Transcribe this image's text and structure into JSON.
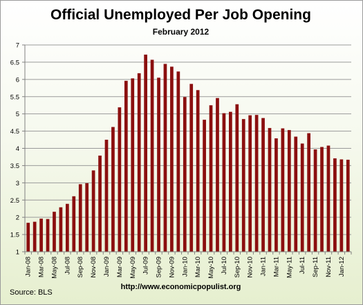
{
  "chart_data": {
    "type": "bar",
    "title": "Official Unemployed Per Job Opening",
    "subtitle": "February 2012",
    "source": "Source:  BLS",
    "url": "http://www.economicpopulist.org",
    "xlabel": "",
    "ylabel": "",
    "ylim": [
      1,
      7
    ],
    "yticks": [
      1,
      1.5,
      2,
      2.5,
      3,
      3.5,
      4,
      4.5,
      5,
      5.5,
      6,
      6.5,
      7
    ],
    "grid": true,
    "legend": "none",
    "bar_color": "#8b0f0f",
    "categories": [
      "Jan-08",
      "Feb-08",
      "Mar-08",
      "Apr-08",
      "May-08",
      "Jun-08",
      "Jul-08",
      "Aug-08",
      "Sep-08",
      "Oct-08",
      "Nov-08",
      "Dec-08",
      "Jan-09",
      "Feb-09",
      "Mar-09",
      "Apr-09",
      "May-09",
      "Jun-09",
      "Jul-09",
      "Aug-09",
      "Sep-09",
      "Oct-09",
      "Nov-09",
      "Dec-09",
      "Jan-10",
      "Feb-10",
      "Mar-10",
      "Apr-10",
      "May-10",
      "Jun-10",
      "Jul-10",
      "Aug-10",
      "Sep-10",
      "Oct-10",
      "Nov-10",
      "Dec-10",
      "Jan-11",
      "Feb-11",
      "Mar-11",
      "Apr-11",
      "May-11",
      "Jun-11",
      "Jul-11",
      "Aug-11",
      "Sep-11",
      "Oct-11",
      "Nov-11",
      "Dec-11",
      "Jan-12",
      "Feb-12"
    ],
    "values": [
      1.84,
      1.87,
      1.96,
      1.95,
      2.16,
      2.29,
      2.39,
      2.61,
      2.96,
      2.99,
      3.36,
      3.79,
      4.25,
      4.62,
      5.19,
      5.96,
      6.03,
      6.18,
      6.72,
      6.57,
      6.05,
      6.45,
      6.37,
      6.23,
      5.49,
      5.87,
      5.69,
      4.83,
      5.25,
      5.46,
      5.02,
      5.06,
      5.28,
      4.85,
      4.96,
      4.97,
      4.88,
      4.59,
      4.29,
      4.58,
      4.53,
      4.34,
      4.14,
      4.44,
      3.97,
      4.04,
      4.08,
      3.71,
      3.68,
      3.67
    ],
    "xtick_labels": [
      "Jan-08",
      "Mar-08",
      "May-08",
      "Jul-08",
      "Sep-08",
      "Nov-08",
      "Jan-09",
      "Mar-09",
      "May-09",
      "Jul-09",
      "Sep-09",
      "Nov-09",
      "Jan-10",
      "Mar-10",
      "May-10",
      "Jul-10",
      "Sep-10",
      "Nov-10",
      "Jan-11",
      "Mar-11",
      "May-11",
      "Jul-11",
      "Sep-11",
      "Nov-11",
      "Jan-12"
    ]
  }
}
